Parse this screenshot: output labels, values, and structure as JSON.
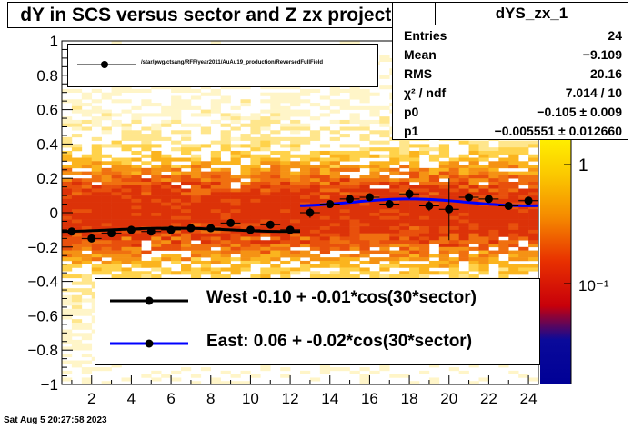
{
  "title": "dY in SCS versus sector and Z zx projection",
  "stats": {
    "name": "dYS_zx_1",
    "rows": [
      {
        "key": "Entries",
        "value": "24"
      },
      {
        "key": "Mean",
        "value": "−9.109"
      },
      {
        "key": "RMS",
        "value": "20.16"
      },
      {
        "key": "χ² / ndf",
        "value": "7.014 / 10"
      },
      {
        "key": "p0",
        "value": "−0.105 ± 0.009"
      },
      {
        "key": "p1",
        "value": "−0.005551 ± 0.012660"
      }
    ]
  },
  "legend_top": {
    "label": "/star/pwg/ctsang/RFF/year2011/AuAu19_production/ReversedFullField"
  },
  "legend_bottom": [
    {
      "label": "West -0.10 + -0.01*cos(30*sector)",
      "color": "#000000"
    },
    {
      "label": "East:  0.06 + -0.02*cos(30*sector)",
      "color": "#0000ff"
    }
  ],
  "footer": "Sat Aug  5 20:27:58 2023",
  "palette_labels": [
    "1",
    "10⁻¹"
  ],
  "chart_data": {
    "type": "scatter",
    "xlim": [
      0.5,
      24.5
    ],
    "ylim": [
      -1,
      1
    ],
    "xticks": [
      "2",
      "4",
      "6",
      "8",
      "10",
      "12",
      "14",
      "16",
      "18",
      "20",
      "22",
      "24"
    ],
    "yticks": [
      "−1",
      "−0.8",
      "−0.6",
      "−0.4",
      "−0.2",
      "0",
      "0.2",
      "0.4",
      "0.6",
      "0.8",
      "1"
    ],
    "series": [
      {
        "x": [
          1,
          2,
          3,
          4,
          5,
          6,
          7,
          8,
          9,
          10,
          11,
          12,
          13,
          14,
          15,
          16,
          17,
          18,
          19,
          20,
          21,
          22,
          23,
          24
        ],
        "y": [
          -0.11,
          -0.15,
          -0.12,
          -0.1,
          -0.11,
          -0.1,
          -0.09,
          -0.09,
          -0.06,
          -0.1,
          -0.07,
          -0.1,
          0.0,
          0.05,
          0.08,
          0.09,
          0.05,
          0.11,
          0.04,
          0.02,
          0.09,
          0.08,
          0.04,
          0.07
        ],
        "yerr": [
          0.01,
          0.01,
          0.01,
          0.01,
          0.01,
          0.01,
          0.01,
          0.01,
          0.01,
          0.01,
          0.01,
          0.01,
          0.03,
          0.02,
          0.02,
          0.02,
          0.02,
          0.03,
          0.03,
          0.18,
          0.02,
          0.02,
          0.02,
          0.02
        ]
      }
    ],
    "fits": [
      {
        "label": "West",
        "color": "#000000",
        "p0": -0.1,
        "p1": -0.01,
        "x_range": [
          0.5,
          12.5
        ]
      },
      {
        "label": "East",
        "color": "#0000ff",
        "p0": 0.06,
        "p1": -0.02,
        "x_range": [
          12.5,
          24.5
        ]
      }
    ]
  }
}
